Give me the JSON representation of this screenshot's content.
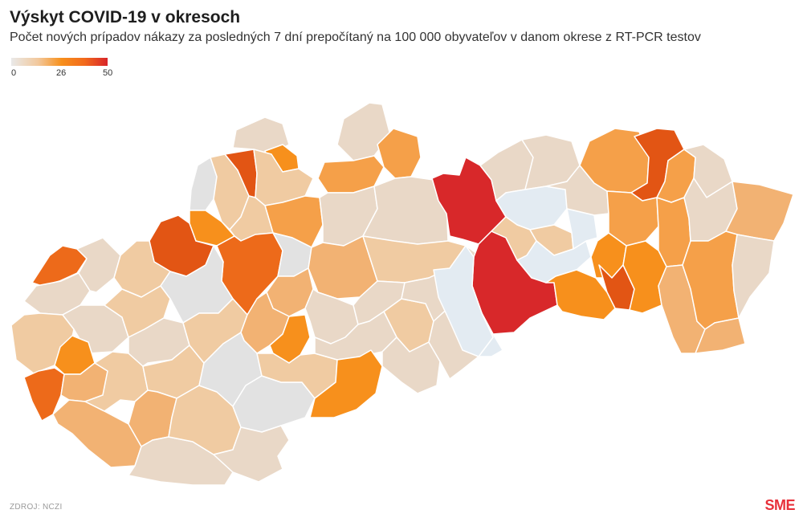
{
  "header": {
    "title": "Výskyt COVID-19 v okresoch",
    "subtitle": "Počet nových prípadov nákazy za posledných 7 dní prepočítaný na 100 000 obyvateľov v danom okrese z RT-PCR testov"
  },
  "legend": {
    "min_label": "0",
    "mid_label": "26",
    "max_label": "50",
    "color_scale": [
      "#e9e9e9",
      "#f2c89c",
      "#f7901c",
      "#f26a1c",
      "#d8252a"
    ]
  },
  "footer": {
    "source": "ZDROJ: NCZI",
    "logo": "SME"
  },
  "map": {
    "fill_colors": {
      "none": "#e2e2e2",
      "very_low": "#e9d8c7",
      "low": "#f0cba2",
      "medium_low": "#f2b273",
      "medium": "#f5a049",
      "medium_high": "#f7901c",
      "high": "#ed6a1a",
      "very_high": "#e25514",
      "max": "#d8282a",
      "pale_blue": "#e3ebf2"
    }
  }
}
